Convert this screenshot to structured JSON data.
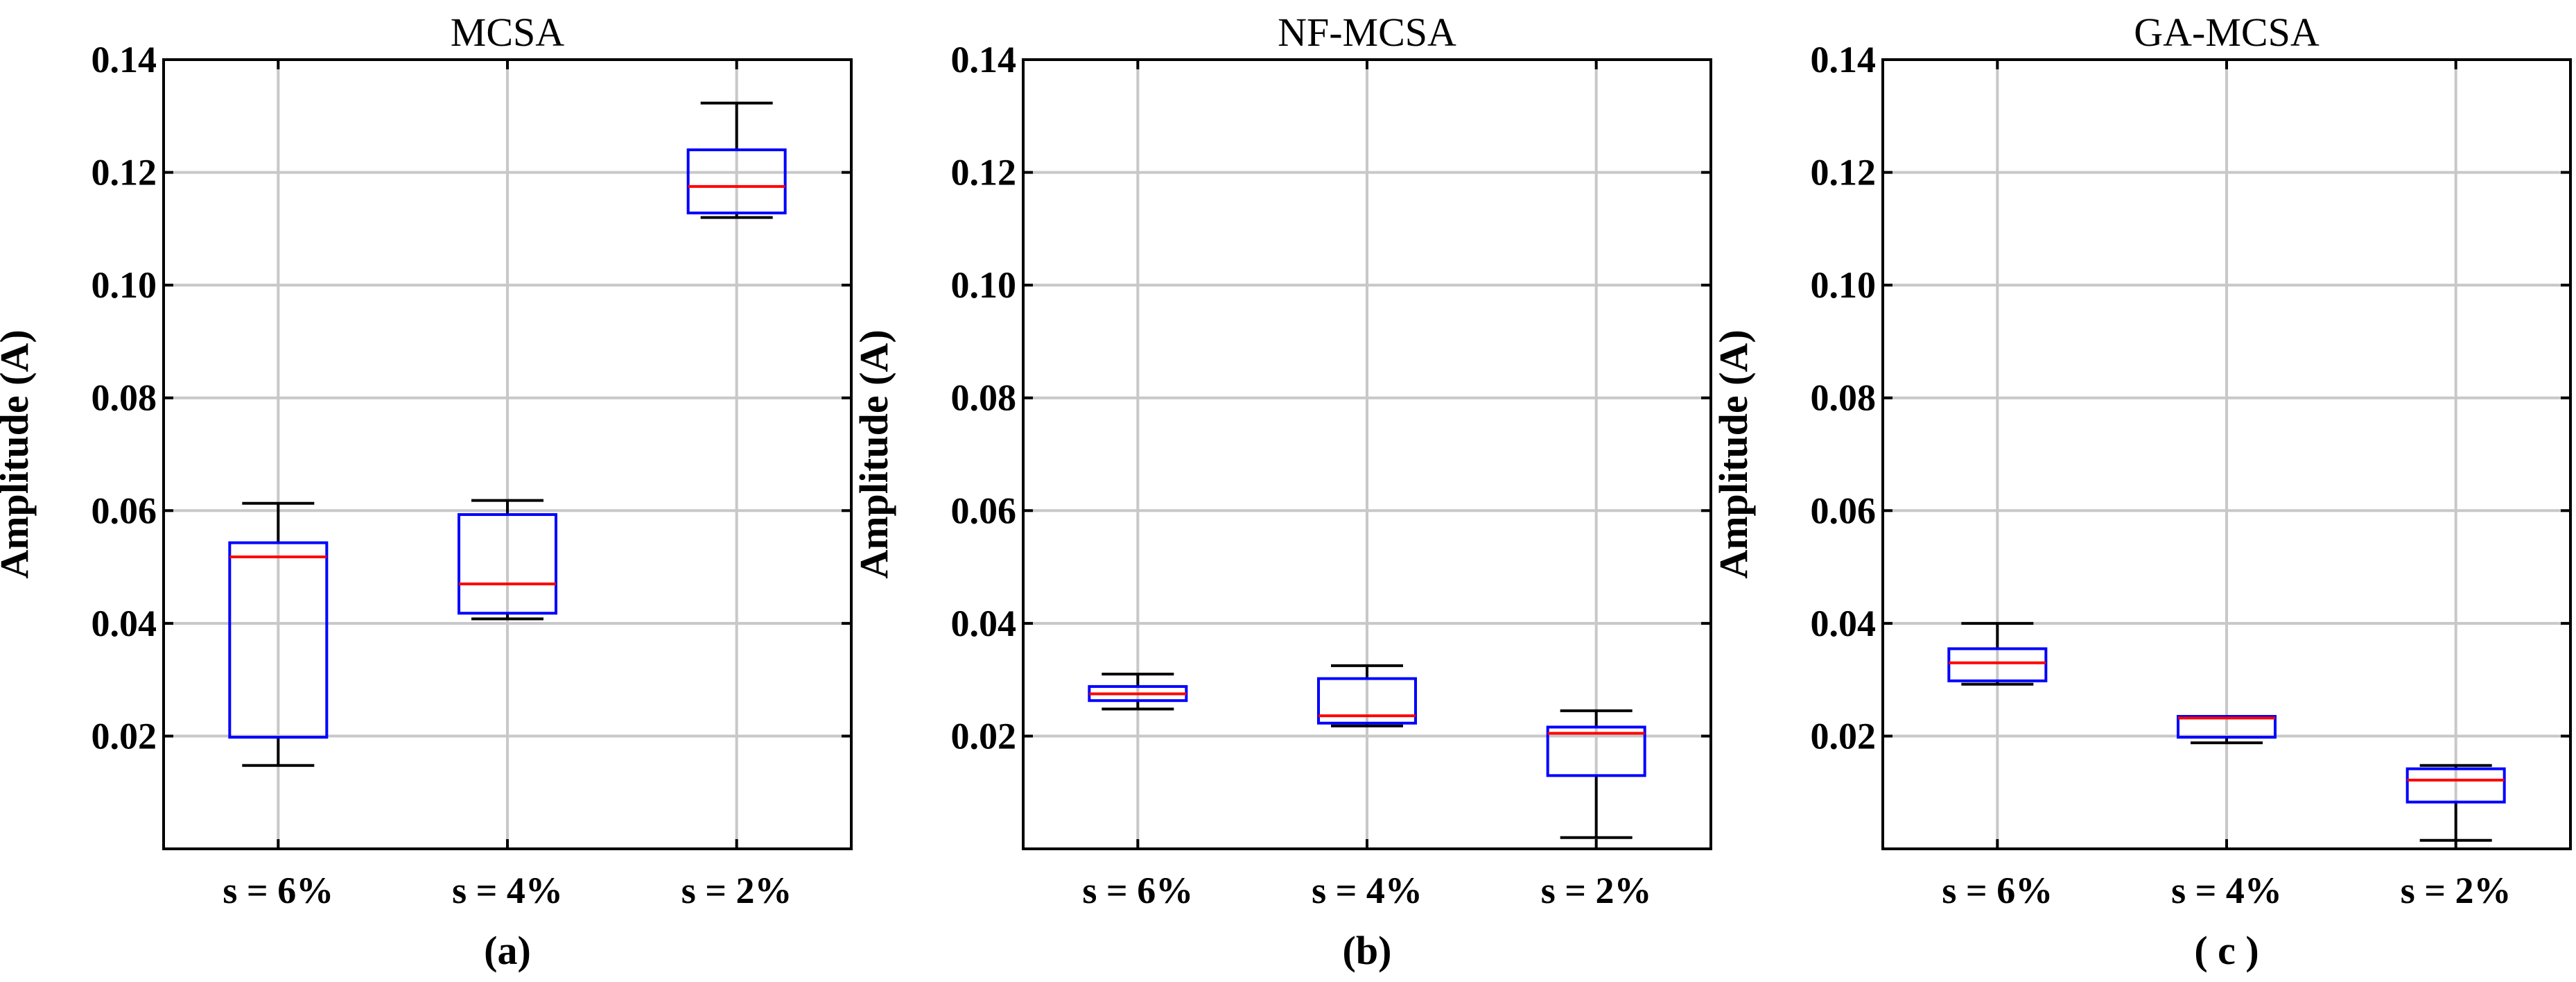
{
  "chart_data": [
    {
      "type": "box",
      "title": "MCSA",
      "ylabel": "Amplitude (A)",
      "panel_label": "(a)",
      "categories": [
        "s = 6%",
        "s = 4%",
        "s = 2%"
      ],
      "ylim": [
        0,
        0.14
      ],
      "yticks": [
        "0.02",
        "0.04",
        "0.06",
        "0.08",
        "0.10",
        "0.12",
        "0.14"
      ],
      "grid": true,
      "boxes": [
        {
          "min": 0.0148,
          "q1": 0.0198,
          "median": 0.0518,
          "q3": 0.0543,
          "max": 0.0613
        },
        {
          "min": 0.0408,
          "q1": 0.0418,
          "median": 0.047,
          "q3": 0.0593,
          "max": 0.0618
        },
        {
          "min": 0.112,
          "q1": 0.1128,
          "median": 0.1175,
          "q3": 0.124,
          "max": 0.1323
        }
      ]
    },
    {
      "type": "box",
      "title": "NF-MCSA",
      "ylabel": "Amplitude (A)",
      "panel_label": "(b)",
      "categories": [
        "s = 6%",
        "s = 4%",
        "s = 2%"
      ],
      "ylim": [
        0,
        0.14
      ],
      "yticks": [
        "0.02",
        "0.04",
        "0.06",
        "0.08",
        "0.10",
        "0.12",
        "0.14"
      ],
      "grid": true,
      "boxes": [
        {
          "min": 0.0248,
          "q1": 0.0263,
          "median": 0.0275,
          "q3": 0.0288,
          "max": 0.031
        },
        {
          "min": 0.0218,
          "q1": 0.0223,
          "median": 0.0236,
          "q3": 0.0302,
          "max": 0.0325
        },
        {
          "min": 0.002,
          "q1": 0.013,
          "median": 0.0205,
          "q3": 0.0216,
          "max": 0.0245
        }
      ]
    },
    {
      "type": "box",
      "title": "GA-MCSA",
      "ylabel": "Amplitude (A)",
      "panel_label": "( c )",
      "categories": [
        "s = 6%",
        "s = 4%",
        "s = 2%"
      ],
      "ylim": [
        0,
        0.14
      ],
      "yticks": [
        "0.02",
        "0.04",
        "0.06",
        "0.08",
        "0.10",
        "0.12",
        "0.14"
      ],
      "grid": true,
      "boxes": [
        {
          "min": 0.0292,
          "q1": 0.0298,
          "median": 0.033,
          "q3": 0.0355,
          "max": 0.04
        },
        {
          "min": 0.0188,
          "q1": 0.0198,
          "median": 0.0232,
          "q3": 0.0235,
          "max": 0.0235
        },
        {
          "min": 0.0015,
          "q1": 0.0083,
          "median": 0.0122,
          "q3": 0.0142,
          "max": 0.0148
        }
      ]
    }
  ],
  "colors": {
    "box": "#0000ff",
    "median": "#ff0000",
    "whisker": "#000000",
    "grid": "#c8c8c8"
  }
}
